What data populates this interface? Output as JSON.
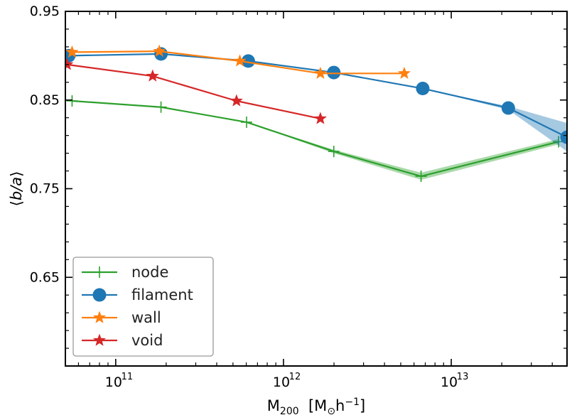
{
  "chart_data": {
    "type": "line",
    "title": "",
    "xlabel": "M200 [M⊙h−1]",
    "ylabel": "⟨b/a⟩",
    "xscale": "log",
    "xlim_log10": [
      10.7,
      13.69
    ],
    "ylim": [
      0.55,
      0.95
    ],
    "yticks": [
      0.65,
      0.75,
      0.85,
      0.95
    ],
    "ytick_labels": [
      "0.65",
      "0.75",
      "0.85",
      "0.95"
    ],
    "xticks_log10": [
      11,
      12,
      13
    ],
    "xtick_labels": [
      {
        "base": "10",
        "exp": "11"
      },
      {
        "base": "10",
        "exp": "12"
      },
      {
        "base": "10",
        "exp": "13"
      }
    ],
    "legend_position": "lower-left",
    "series": [
      {
        "name": "node",
        "color": "#2ca02c",
        "marker": "plus",
        "points": [
          {
            "log_m": 10.74,
            "y": 0.849,
            "err": 0.0
          },
          {
            "log_m": 11.27,
            "y": 0.842,
            "err": 0.0
          },
          {
            "log_m": 11.78,
            "y": 0.825,
            "err": 0.0
          },
          {
            "log_m": 12.3,
            "y": 0.792,
            "err": 0.002
          },
          {
            "log_m": 12.82,
            "y": 0.764,
            "err": 0.004
          },
          {
            "log_m": 13.64,
            "y": 0.803,
            "err": 0.003
          }
        ]
      },
      {
        "name": "filament",
        "color": "#1f77b4",
        "marker": "circle",
        "points": [
          {
            "log_m": 10.72,
            "y": 0.9,
            "err": 0.0
          },
          {
            "log_m": 11.27,
            "y": 0.902,
            "err": 0.0
          },
          {
            "log_m": 11.79,
            "y": 0.894,
            "err": 0.0
          },
          {
            "log_m": 12.3,
            "y": 0.881,
            "err": 0.0
          },
          {
            "log_m": 12.83,
            "y": 0.863,
            "err": 0.0
          },
          {
            "log_m": 13.34,
            "y": 0.841,
            "err": 0.002
          },
          {
            "log_m": 13.69,
            "y": 0.808,
            "err": 0.016
          }
        ]
      },
      {
        "name": "wall",
        "color": "#ff7f0e",
        "marker": "star",
        "points": [
          {
            "log_m": 10.74,
            "y": 0.904,
            "err": 0.0
          },
          {
            "log_m": 11.26,
            "y": 0.905,
            "err": 0.0
          },
          {
            "log_m": 11.74,
            "y": 0.894,
            "err": 0.0
          },
          {
            "log_m": 12.22,
            "y": 0.88,
            "err": 0.0
          },
          {
            "log_m": 12.72,
            "y": 0.88,
            "err": 0.0
          }
        ]
      },
      {
        "name": "void",
        "color": "#d62728",
        "marker": "star",
        "points": [
          {
            "log_m": 10.71,
            "y": 0.89,
            "err": 0.0
          },
          {
            "log_m": 11.22,
            "y": 0.877,
            "err": 0.0
          },
          {
            "log_m": 11.72,
            "y": 0.849,
            "err": 0.0
          },
          {
            "log_m": 12.22,
            "y": 0.829,
            "err": 0.0
          }
        ]
      }
    ]
  }
}
